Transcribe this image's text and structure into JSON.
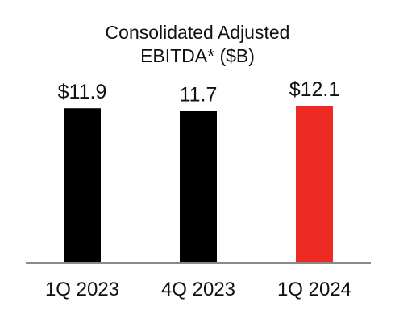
{
  "chart_data": {
    "type": "bar",
    "title": "Consolidated Adjusted\nEBITDA* ($B)",
    "title_lines": [
      "Consolidated Adjusted",
      "EBITDA* ($B)"
    ],
    "categories": [
      "1Q 2023",
      "4Q 2023",
      "1Q 2024"
    ],
    "values": [
      11.9,
      11.7,
      12.1
    ],
    "data_labels": [
      "$11.9",
      "11.7",
      "$12.1"
    ],
    "bar_colors": [
      "#000000",
      "#000000",
      "#ee2a24"
    ],
    "axis_color": "#8a8a8a",
    "xlabel": "",
    "ylabel": "",
    "ylim": [
      0,
      12.1
    ],
    "grid": false,
    "legend": false
  }
}
